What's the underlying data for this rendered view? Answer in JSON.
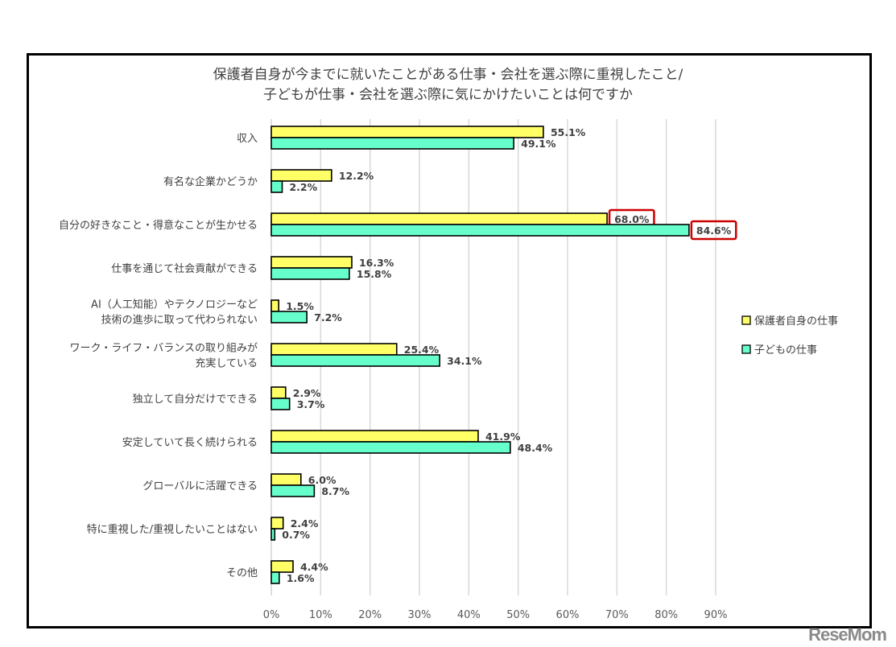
{
  "chart_data": {
    "type": "bar",
    "orientation": "horizontal",
    "title_lines": [
      "保護者自身が今までに就いたことがある仕事・会社を選ぶ際に重視したこと/",
      "子どもが仕事・会社を選ぶ際に気にかけたいことは何ですか"
    ],
    "categories": [
      [
        "収入"
      ],
      [
        "有名な企業かどうか"
      ],
      [
        "自分の好きなこと・得意なことが生かせる"
      ],
      [
        "仕事を通じて社会貢献ができる"
      ],
      [
        "AI（人工知能）やテクノロジーなど",
        "技術の進歩に取って代わられない"
      ],
      [
        "ワーク・ライフ・バランスの取り組みが",
        "充実している"
      ],
      [
        "独立して自分だけでできる"
      ],
      [
        "安定していて長く続けられる"
      ],
      [
        "グローバルに活躍できる"
      ],
      [
        "特に重視した/重視したいことはない"
      ],
      [
        "その他"
      ]
    ],
    "series": [
      {
        "name": "保護者自身の仕事",
        "color": "#ffff66",
        "values": [
          55.1,
          12.2,
          68.0,
          16.3,
          1.5,
          25.4,
          2.9,
          41.9,
          6.0,
          2.4,
          4.4
        ],
        "labels": [
          "55.1%",
          "12.2%",
          "68.0%",
          "16.3%",
          "1.5%",
          "25.4%",
          "2.9%",
          "41.9%",
          "6.0%",
          "2.4%",
          "4.4%"
        ]
      },
      {
        "name": "子どもの仕事",
        "color": "#66ffcc",
        "values": [
          49.1,
          2.2,
          84.6,
          15.8,
          7.2,
          34.1,
          3.7,
          48.4,
          8.7,
          0.7,
          1.6
        ],
        "labels": [
          "49.1%",
          "2.2%",
          "84.6%",
          "15.8%",
          "7.2%",
          "34.1%",
          "3.7%",
          "48.4%",
          "8.7%",
          "0.7%",
          "1.6%"
        ]
      }
    ],
    "highlighted": [
      {
        "series": 0,
        "index": 2
      },
      {
        "series": 1,
        "index": 2
      }
    ],
    "highlight_color": "#cc0000",
    "xlim": [
      0,
      90
    ],
    "xticks": [
      "0%",
      "10%",
      "20%",
      "30%",
      "40%",
      "50%",
      "60%",
      "70%",
      "80%",
      "90%"
    ],
    "grid": true,
    "legend_position": "right"
  },
  "watermark": "ReseMom"
}
